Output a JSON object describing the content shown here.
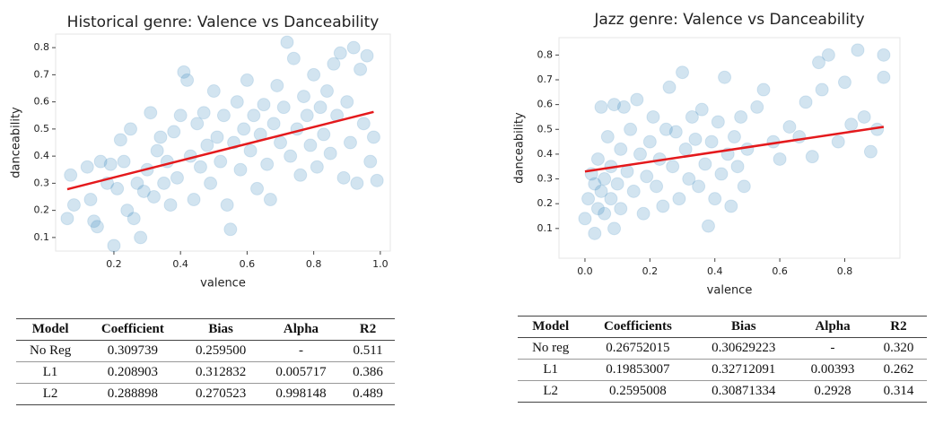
{
  "chart_data": [
    {
      "type": "scatter",
      "title": "Historical genre: Valence vs Danceability",
      "x_label": "valence",
      "y_label": "danceability",
      "color": "#1f77b4",
      "x": [
        0.06,
        0.07,
        0.08,
        0.12,
        0.13,
        0.14,
        0.15,
        0.16,
        0.18,
        0.19,
        0.2,
        0.21,
        0.22,
        0.23,
        0.24,
        0.25,
        0.26,
        0.27,
        0.28,
        0.29,
        0.3,
        0.31,
        0.32,
        0.33,
        0.34,
        0.35,
        0.36,
        0.37,
        0.38,
        0.39,
        0.4,
        0.41,
        0.42,
        0.43,
        0.44,
        0.45,
        0.46,
        0.47,
        0.48,
        0.49,
        0.5,
        0.51,
        0.52,
        0.53,
        0.54,
        0.55,
        0.56,
        0.57,
        0.58,
        0.59,
        0.6,
        0.61,
        0.62,
        0.63,
        0.64,
        0.65,
        0.66,
        0.67,
        0.68,
        0.69,
        0.7,
        0.71,
        0.72,
        0.73,
        0.74,
        0.75,
        0.76,
        0.77,
        0.78,
        0.79,
        0.8,
        0.81,
        0.82,
        0.83,
        0.84,
        0.85,
        0.86,
        0.87,
        0.88,
        0.89,
        0.9,
        0.91,
        0.92,
        0.93,
        0.94,
        0.95,
        0.96,
        0.97,
        0.98,
        0.99
      ],
      "values": [
        0.17,
        0.33,
        0.22,
        0.36,
        0.24,
        0.16,
        0.14,
        0.38,
        0.3,
        0.37,
        0.07,
        0.28,
        0.46,
        0.38,
        0.2,
        0.5,
        0.17,
        0.3,
        0.1,
        0.27,
        0.35,
        0.56,
        0.25,
        0.42,
        0.47,
        0.3,
        0.38,
        0.22,
        0.49,
        0.32,
        0.55,
        0.71,
        0.68,
        0.4,
        0.24,
        0.52,
        0.36,
        0.56,
        0.44,
        0.3,
        0.64,
        0.47,
        0.38,
        0.55,
        0.22,
        0.13,
        0.45,
        0.6,
        0.35,
        0.5,
        0.68,
        0.42,
        0.55,
        0.28,
        0.48,
        0.59,
        0.37,
        0.24,
        0.52,
        0.66,
        0.45,
        0.58,
        0.82,
        0.4,
        0.76,
        0.5,
        0.33,
        0.62,
        0.55,
        0.44,
        0.7,
        0.36,
        0.58,
        0.48,
        0.64,
        0.41,
        0.74,
        0.55,
        0.78,
        0.32,
        0.6,
        0.45,
        0.8,
        0.3,
        0.72,
        0.52,
        0.77,
        0.38,
        0.47,
        0.31
      ],
      "trend_line": {
        "color": "#e4191c",
        "x": [
          0.06,
          0.98
        ],
        "values": [
          0.278,
          0.563
        ]
      },
      "xlim": [
        0.025,
        1.03
      ],
      "ylim": [
        0.05,
        0.85
      ],
      "xticks": [
        0.2,
        0.4,
        0.6,
        0.8,
        {
          "value": 1,
          "label": "1.0"
        }
      ],
      "yticks": [
        0.1,
        0.2,
        0.3,
        0.4,
        0.5,
        0.6,
        0.7,
        0.8
      ]
    },
    {
      "type": "scatter",
      "title": "Jazz genre: Valence vs Danceability",
      "x_label": "valence",
      "y_label": "danceability",
      "color": "#1f77b4",
      "x": [
        0.0,
        0.01,
        0.02,
        0.03,
        0.03,
        0.04,
        0.04,
        0.05,
        0.05,
        0.06,
        0.06,
        0.07,
        0.08,
        0.08,
        0.09,
        0.09,
        0.1,
        0.11,
        0.11,
        0.12,
        0.13,
        0.14,
        0.15,
        0.16,
        0.17,
        0.18,
        0.19,
        0.2,
        0.21,
        0.22,
        0.23,
        0.24,
        0.25,
        0.26,
        0.27,
        0.28,
        0.29,
        0.3,
        0.31,
        0.32,
        0.33,
        0.34,
        0.35,
        0.36,
        0.37,
        0.38,
        0.39,
        0.4,
        0.41,
        0.42,
        0.43,
        0.44,
        0.45,
        0.46,
        0.47,
        0.48,
        0.49,
        0.5,
        0.53,
        0.55,
        0.58,
        0.6,
        0.63,
        0.66,
        0.68,
        0.7,
        0.72,
        0.73,
        0.75,
        0.78,
        0.8,
        0.82,
        0.84,
        0.86,
        0.88,
        0.9,
        0.92,
        0.92
      ],
      "values": [
        0.14,
        0.22,
        0.32,
        0.08,
        0.28,
        0.18,
        0.38,
        0.59,
        0.25,
        0.3,
        0.16,
        0.47,
        0.22,
        0.35,
        0.1,
        0.6,
        0.28,
        0.42,
        0.18,
        0.59,
        0.33,
        0.5,
        0.25,
        0.62,
        0.4,
        0.16,
        0.31,
        0.45,
        0.55,
        0.27,
        0.38,
        0.19,
        0.5,
        0.67,
        0.35,
        0.49,
        0.22,
        0.73,
        0.42,
        0.3,
        0.55,
        0.46,
        0.27,
        0.58,
        0.36,
        0.11,
        0.45,
        0.22,
        0.53,
        0.32,
        0.71,
        0.4,
        0.19,
        0.47,
        0.35,
        0.55,
        0.27,
        0.42,
        0.59,
        0.66,
        0.45,
        0.38,
        0.51,
        0.47,
        0.61,
        0.39,
        0.77,
        0.66,
        0.8,
        0.45,
        0.69,
        0.52,
        0.82,
        0.55,
        0.41,
        0.5,
        0.8,
        0.71
      ],
      "trend_line": {
        "color": "#e4191c",
        "x": [
          0.0,
          0.92
        ],
        "values": [
          0.33,
          0.51
        ]
      },
      "xlim": [
        -0.08,
        0.97
      ],
      "ylim": [
        -0.02,
        0.87
      ],
      "xticks": [
        {
          "value": 0,
          "label": "0.0"
        },
        0.2,
        0.4,
        0.6,
        0.8
      ],
      "yticks": [
        0.1,
        0.2,
        0.3,
        0.4,
        0.5,
        0.6,
        0.7,
        0.8
      ]
    }
  ],
  "tables": [
    {
      "header": [
        "Model",
        "Coefficient",
        "Bias",
        "Alpha",
        "R2"
      ],
      "rows": [
        [
          "No Reg",
          "0.309739",
          "0.259500",
          "-",
          "0.511"
        ],
        [
          "L1",
          "0.208903",
          "0.312832",
          "0.005717",
          "0.386"
        ],
        [
          "L2",
          "0.288898",
          "0.270523",
          "0.998148",
          "0.489"
        ]
      ]
    },
    {
      "header": [
        "Model",
        "Coefficients",
        "Bias",
        "Alpha",
        "R2"
      ],
      "rows": [
        [
          "No reg",
          "0.26752015",
          "0.30629223",
          "-",
          "0.320"
        ],
        [
          "L1",
          "0.19853007",
          "0.32712091",
          "0.00393",
          "0.262"
        ],
        [
          "L2",
          "0.2595008",
          "0.30871334",
          "0.2928",
          "0.314"
        ]
      ]
    }
  ]
}
